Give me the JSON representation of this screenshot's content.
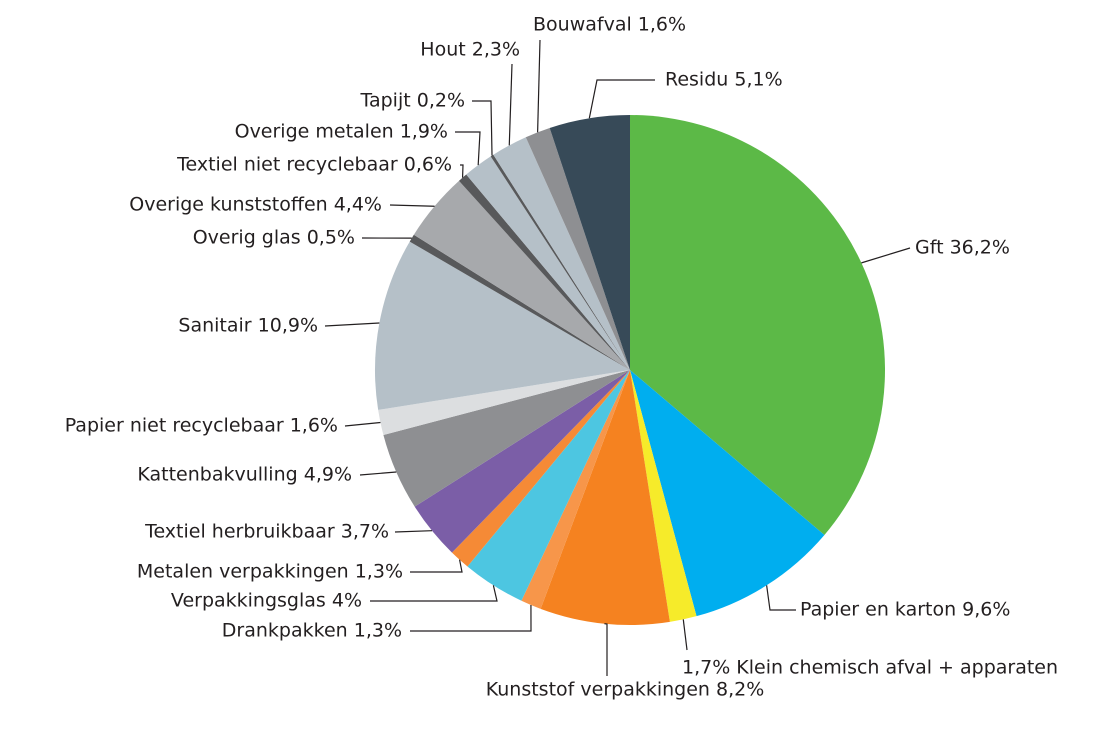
{
  "chart_data": {
    "type": "pie",
    "labels": [
      "Gft 36,2%",
      "Papier en karton 9,6%",
      "1,7% Klein chemisch afval + apparaten",
      "Kunststof verpakkingen 8,2%",
      "Drankpakken 1,3%",
      "Verpakkingsglas 4%",
      "Metalen verpakkingen 1,3%",
      "Textiel herbruikbaar 3,7%",
      "Kattenbakvulling 4,9%",
      "Papier niet recyclebaar 1,6%",
      "Sanitair 10,9%",
      "Overig glas 0,5%",
      "Overige kunststoffen 4,4%",
      "Textiel niet recyclebaar 0,6%",
      "Overige metalen 1,9%",
      "Tapijt 0,2%",
      "Hout 2,3%",
      "Bouwafval 1,6%",
      "Residu 5,1%"
    ],
    "values": [
      36.2,
      9.6,
      1.7,
      8.2,
      1.3,
      4,
      1.3,
      3.7,
      4.9,
      1.6,
      10.9,
      0.5,
      4.4,
      0.6,
      1.9,
      0.2,
      2.3,
      1.6,
      5.1
    ],
    "colors": [
      "#5cb947",
      "#00aeef",
      "#f6eb2a",
      "#f58220",
      "#f7964a",
      "#4dc6e1",
      "#f58a36",
      "#7b5ea7",
      "#8e8f92",
      "#dcdee0",
      "#b5c0c8",
      "#58595b",
      "#a7a9ac",
      "#58595b",
      "#b5c0c8",
      "#58595b",
      "#b5c0c8",
      "#8e8f92",
      "#374a58"
    ]
  }
}
